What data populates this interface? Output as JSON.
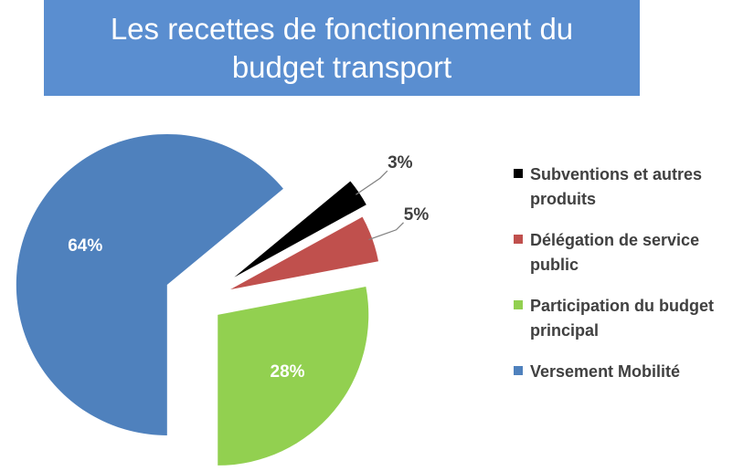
{
  "chart_data": {
    "type": "pie",
    "title": "Les recettes de fonctionnement du budget transport",
    "categories": [
      "Subventions et autres produits",
      "Délégation de service public",
      "Participation du budget principal",
      "Versement Mobilité"
    ],
    "values": [
      3,
      5,
      28,
      64
    ],
    "value_labels": [
      "3%",
      "5%",
      "28%",
      "64%"
    ],
    "colors": [
      "#000000",
      "#c0504d",
      "#92d050",
      "#4f81bd"
    ],
    "legend": "right"
  }
}
